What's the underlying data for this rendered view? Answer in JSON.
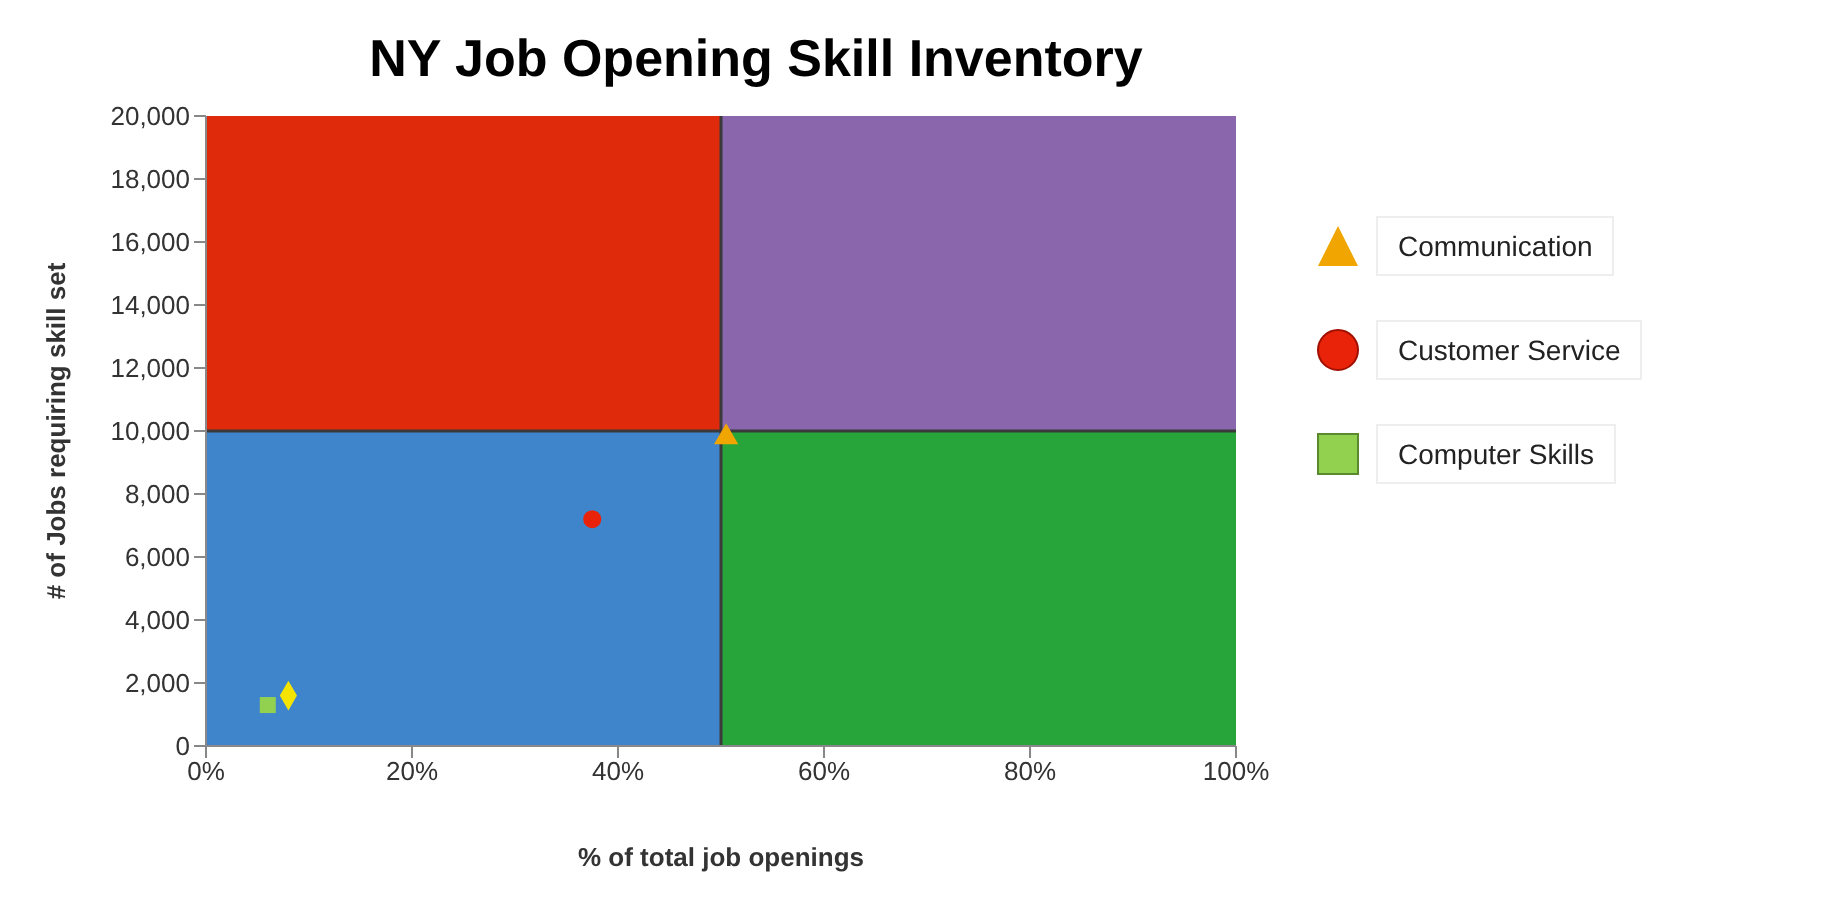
{
  "chart_data": {
    "type": "scatter",
    "title": "NY Job Opening Skill Inventory",
    "xlabel": "% of total job openings",
    "ylabel": "# of Jobs requiring skill set",
    "xlim": [
      0,
      100
    ],
    "ylim": [
      0,
      20000
    ],
    "xticks": [
      {
        "value": 0,
        "label": "0%"
      },
      {
        "value": 20,
        "label": "20%"
      },
      {
        "value": 40,
        "label": "40%"
      },
      {
        "value": 60,
        "label": "60%"
      },
      {
        "value": 80,
        "label": "80%"
      },
      {
        "value": 100,
        "label": "100%"
      }
    ],
    "yticks": [
      {
        "value": 0,
        "label": "0"
      },
      {
        "value": 2000,
        "label": "2,000"
      },
      {
        "value": 4000,
        "label": "4,000"
      },
      {
        "value": 6000,
        "label": "6,000"
      },
      {
        "value": 8000,
        "label": "8,000"
      },
      {
        "value": 10000,
        "label": "10,000"
      },
      {
        "value": 12000,
        "label": "12,000"
      },
      {
        "value": 14000,
        "label": "14,000"
      },
      {
        "value": 16000,
        "label": "16,000"
      },
      {
        "value": 18000,
        "label": "18,000"
      },
      {
        "value": 20000,
        "label": "20,000"
      }
    ],
    "series": [
      {
        "name": "Communication",
        "color": "#f0a500",
        "marker": "triangle",
        "x": [
          50.5
        ],
        "values": [
          9800
        ]
      },
      {
        "name": "Customer Service",
        "color": "#e8230a",
        "marker": "circle",
        "x": [
          37.5
        ],
        "values": [
          7200
        ]
      },
      {
        "color": "#f5e400",
        "marker": "diamond",
        "x": [
          8
        ],
        "values": [
          1600
        ]
      },
      {
        "name": "Computer Skills",
        "color": "#92d050",
        "marker": "square",
        "x": [
          6
        ],
        "values": [
          1300
        ]
      }
    ],
    "ref_lines": [
      {
        "axis": "x",
        "value": 50,
        "color": "#3a3a3a"
      },
      {
        "axis": "y",
        "value": 10000,
        "color": "#3a3a3a"
      }
    ],
    "legend": "right"
  }
}
